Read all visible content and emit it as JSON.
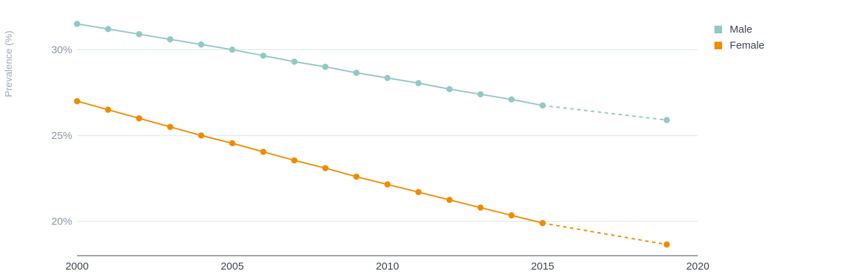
{
  "chart_data": {
    "type": "line",
    "ylabel": "Prevalence (%)",
    "xlabel": "",
    "xlim": [
      2000,
      2020
    ],
    "ylim": [
      18,
      32
    ],
    "x_ticks": [
      2000,
      2005,
      2010,
      2015,
      2020
    ],
    "y_ticks": [
      20,
      25,
      30
    ],
    "y_tick_labels": [
      "20%",
      "25%",
      "30%"
    ],
    "legend_position": "top-right",
    "grid": "horizontal",
    "series": [
      {
        "name": "Male",
        "color": "#93c8c6",
        "x": [
          2000,
          2001,
          2002,
          2003,
          2004,
          2005,
          2006,
          2007,
          2008,
          2009,
          2010,
          2011,
          2012,
          2013,
          2014,
          2015
        ],
        "values": [
          31.5,
          31.2,
          30.9,
          30.6,
          30.3,
          30.0,
          29.65,
          29.3,
          29.0,
          28.65,
          28.35,
          28.05,
          27.7,
          27.4,
          27.1,
          26.75
        ],
        "projection": {
          "x": [
            2015,
            2019
          ],
          "values": [
            26.75,
            25.9
          ]
        }
      },
      {
        "name": "Female",
        "color": "#f08c00",
        "x": [
          2000,
          2001,
          2002,
          2003,
          2004,
          2005,
          2006,
          2007,
          2008,
          2009,
          2010,
          2011,
          2012,
          2013,
          2014,
          2015
        ],
        "values": [
          27.0,
          26.5,
          26.0,
          25.5,
          25.0,
          24.55,
          24.05,
          23.55,
          23.1,
          22.6,
          22.15,
          21.7,
          21.25,
          20.8,
          20.35,
          19.9
        ],
        "projection": {
          "x": [
            2015,
            2019
          ],
          "values": [
            19.9,
            18.65
          ]
        }
      }
    ]
  }
}
